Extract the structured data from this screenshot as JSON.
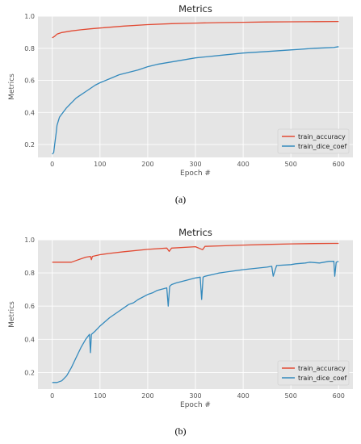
{
  "chart_data": [
    {
      "type": "line",
      "title": "Metrics",
      "xlabel": "Epoch #",
      "ylabel": "Metrics",
      "xlim": [
        -30,
        630
      ],
      "ylim": [
        0.12,
        1.0
      ],
      "xticks": [
        0,
        100,
        200,
        300,
        400,
        500,
        600
      ],
      "yticks": [
        0.2,
        0.4,
        0.6,
        0.8,
        1.0
      ],
      "grid": true,
      "legend_position": "lower-right",
      "caption": "(a)",
      "series": [
        {
          "name": "train_accuracy",
          "color": "#e24a33",
          "x": [
            0,
            5,
            10,
            20,
            40,
            60,
            80,
            100,
            150,
            200,
            250,
            300,
            350,
            400,
            450,
            500,
            550,
            600
          ],
          "y": [
            0.865,
            0.875,
            0.888,
            0.898,
            0.908,
            0.915,
            0.921,
            0.926,
            0.938,
            0.947,
            0.953,
            0.957,
            0.96,
            0.962,
            0.964,
            0.965,
            0.966,
            0.967
          ]
        },
        {
          "name": "train_dice_coef",
          "color": "#348abd",
          "x": [
            0,
            3,
            5,
            8,
            10,
            15,
            20,
            30,
            40,
            50,
            60,
            70,
            80,
            90,
            100,
            120,
            140,
            160,
            180,
            200,
            220,
            240,
            260,
            280,
            300,
            350,
            400,
            450,
            500,
            550,
            590,
            600
          ],
          "y": [
            0.14,
            0.15,
            0.2,
            0.27,
            0.32,
            0.37,
            0.39,
            0.43,
            0.46,
            0.49,
            0.51,
            0.53,
            0.55,
            0.57,
            0.585,
            0.61,
            0.635,
            0.65,
            0.665,
            0.685,
            0.7,
            0.71,
            0.72,
            0.73,
            0.74,
            0.755,
            0.77,
            0.78,
            0.79,
            0.8,
            0.805,
            0.81
          ]
        }
      ]
    },
    {
      "type": "line",
      "title": "Metrics",
      "xlabel": "Epoch #",
      "ylabel": "Metrics",
      "xlim": [
        -30,
        630
      ],
      "ylim": [
        0.1,
        1.0
      ],
      "xticks": [
        0,
        100,
        200,
        300,
        400,
        500,
        600
      ],
      "yticks": [
        0.2,
        0.4,
        0.6,
        0.8,
        1.0
      ],
      "grid": true,
      "legend_position": "lower-right",
      "caption": "(b)",
      "series": [
        {
          "name": "train_accuracy",
          "color": "#e24a33",
          "x": [
            0,
            20,
            40,
            50,
            60,
            70,
            80,
            82,
            84,
            100,
            120,
            150,
            200,
            240,
            245,
            250,
            300,
            315,
            320,
            350,
            400,
            450,
            500,
            550,
            590,
            600
          ],
          "y": [
            0.865,
            0.865,
            0.865,
            0.875,
            0.885,
            0.895,
            0.9,
            0.88,
            0.9,
            0.91,
            0.918,
            0.928,
            0.942,
            0.95,
            0.93,
            0.95,
            0.958,
            0.94,
            0.96,
            0.963,
            0.968,
            0.972,
            0.975,
            0.977,
            0.978,
            0.978
          ]
        },
        {
          "name": "train_dice_coef",
          "color": "#348abd",
          "x": [
            0,
            10,
            20,
            30,
            40,
            50,
            60,
            70,
            78,
            80,
            82,
            90,
            100,
            120,
            140,
            150,
            160,
            170,
            180,
            200,
            210,
            220,
            240,
            243,
            246,
            250,
            260,
            280,
            300,
            310,
            313,
            316,
            320,
            350,
            400,
            450,
            460,
            463,
            470,
            500,
            510,
            530,
            540,
            560,
            580,
            590,
            592,
            595,
            600
          ],
          "y": [
            0.14,
            0.14,
            0.15,
            0.18,
            0.23,
            0.29,
            0.35,
            0.4,
            0.43,
            0.32,
            0.43,
            0.45,
            0.48,
            0.53,
            0.57,
            0.59,
            0.61,
            0.62,
            0.64,
            0.67,
            0.68,
            0.695,
            0.71,
            0.6,
            0.72,
            0.73,
            0.74,
            0.755,
            0.77,
            0.775,
            0.64,
            0.775,
            0.78,
            0.8,
            0.82,
            0.835,
            0.84,
            0.78,
            0.845,
            0.85,
            0.855,
            0.86,
            0.865,
            0.86,
            0.87,
            0.87,
            0.78,
            0.865,
            0.87
          ]
        }
      ]
    }
  ]
}
